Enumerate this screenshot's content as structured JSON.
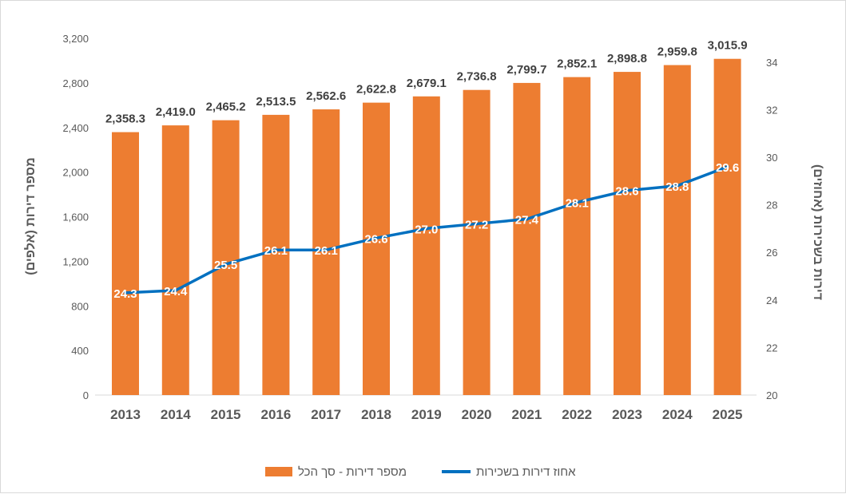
{
  "chart_data": {
    "type": "bar+line",
    "categories": [
      "2013",
      "2014",
      "2015",
      "2016",
      "2017",
      "2018",
      "2019",
      "2020",
      "2021",
      "2022",
      "2023",
      "2024",
      "2025"
    ],
    "series": [
      {
        "name": "מספר דירות - סך הכל",
        "type": "bar",
        "axis": "left",
        "color": "#ED7D31",
        "values": [
          2358.3,
          2419.0,
          2465.2,
          2513.5,
          2562.6,
          2622.8,
          2679.1,
          2736.8,
          2799.7,
          2852.1,
          2898.8,
          2959.8,
          3015.9
        ],
        "labels": [
          "2,358.3",
          "2,419.0",
          "2,465.2",
          "2,513.5",
          "2,562.6",
          "2,622.8",
          "2,679.1",
          "2,736.8",
          "2,799.7",
          "2,852.1",
          "2,898.8",
          "2,959.8",
          "3,015.9"
        ]
      },
      {
        "name": "אחוז דירות בשכירות",
        "type": "line",
        "axis": "right",
        "color": "#0070C0",
        "values": [
          24.3,
          24.4,
          25.5,
          26.1,
          26.1,
          26.6,
          27.0,
          27.2,
          27.4,
          28.1,
          28.6,
          28.8,
          29.6
        ],
        "labels": [
          "24.3",
          "24.4",
          "25.5",
          "26.1",
          "26.1",
          "26.6",
          "27.0",
          "27.2",
          "27.4",
          "28.1",
          "28.6",
          "28.8",
          "29.6"
        ]
      }
    ],
    "ylabel": "מספר דירות (אלפים)",
    "y2label": "דירות בשכירות (אחוזים)",
    "ylim": [
      0,
      3200
    ],
    "yticks": [
      "0",
      "400",
      "800",
      "1,200",
      "1,600",
      "2,000",
      "2,400",
      "2,800",
      "3,200"
    ],
    "y2lim": [
      20,
      35
    ],
    "y2ticks": [
      "20",
      "22",
      "24",
      "26",
      "28",
      "30",
      "32",
      "34"
    ],
    "legend_position": "bottom"
  }
}
